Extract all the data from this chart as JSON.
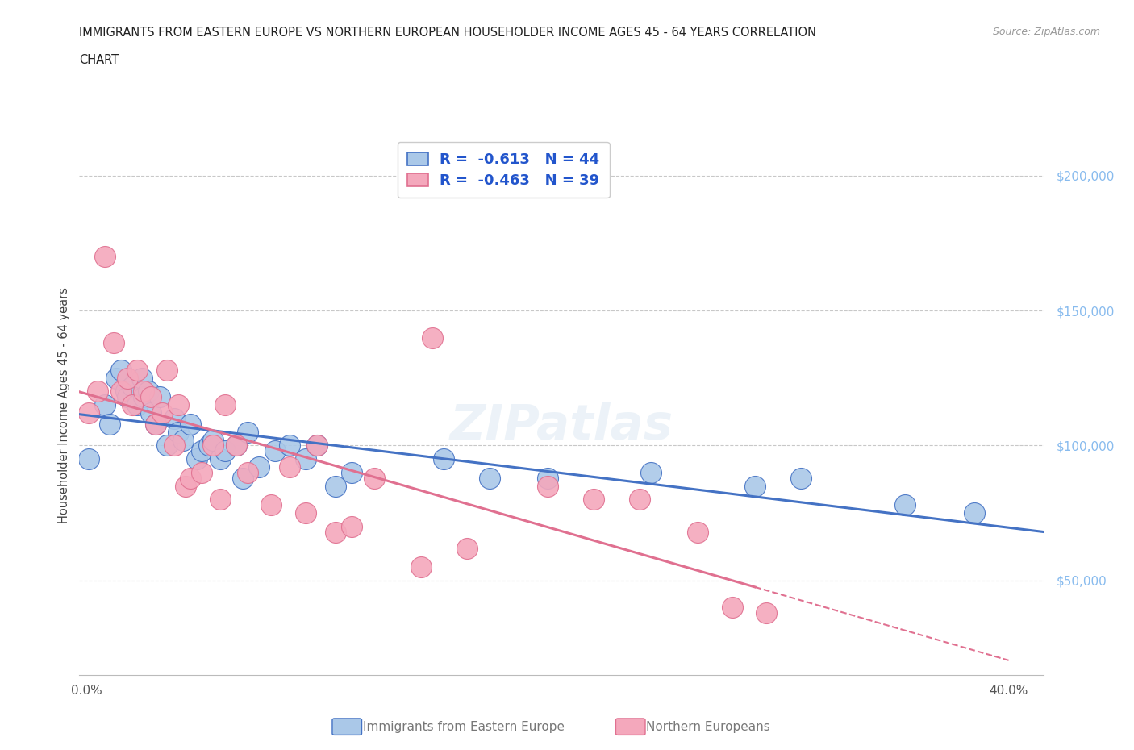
{
  "title_line1": "IMMIGRANTS FROM EASTERN EUROPE VS NORTHERN EUROPEAN HOUSEHOLDER INCOME AGES 45 - 64 YEARS CORRELATION",
  "title_line2": "CHART",
  "source": "Source: ZipAtlas.com",
  "ylabel": "Householder Income Ages 45 - 64 years",
  "r_eastern": -0.613,
  "n_eastern": 44,
  "r_northern": -0.463,
  "n_northern": 39,
  "xlim": [
    -0.003,
    0.415
  ],
  "ylim": [
    15000,
    215000
  ],
  "color_eastern": "#aac8e8",
  "color_northern": "#f4a8bc",
  "line_color_eastern": "#4472c4",
  "line_color_northern": "#e07090",
  "background_color": "#ffffff",
  "grid_color": "#c8c8c8",
  "ytick_color": "#88bbee",
  "legend_text_color": "#2255cc",
  "eastern_x": [
    0.001,
    0.008,
    0.01,
    0.013,
    0.015,
    0.017,
    0.018,
    0.02,
    0.022,
    0.024,
    0.025,
    0.027,
    0.028,
    0.03,
    0.032,
    0.035,
    0.038,
    0.04,
    0.042,
    0.045,
    0.048,
    0.05,
    0.053,
    0.055,
    0.058,
    0.06,
    0.065,
    0.068,
    0.07,
    0.075,
    0.082,
    0.088,
    0.095,
    0.1,
    0.108,
    0.115,
    0.155,
    0.175,
    0.2,
    0.245,
    0.29,
    0.31,
    0.355,
    0.385
  ],
  "eastern_y": [
    95000,
    115000,
    108000,
    125000,
    128000,
    120000,
    118000,
    122000,
    115000,
    125000,
    118000,
    120000,
    112000,
    108000,
    118000,
    100000,
    110000,
    105000,
    102000,
    108000,
    95000,
    98000,
    100000,
    102000,
    95000,
    98000,
    100000,
    88000,
    105000,
    92000,
    98000,
    100000,
    95000,
    100000,
    85000,
    90000,
    95000,
    88000,
    88000,
    90000,
    85000,
    88000,
    78000,
    75000
  ],
  "northern_x": [
    0.001,
    0.005,
    0.008,
    0.012,
    0.015,
    0.018,
    0.02,
    0.022,
    0.025,
    0.028,
    0.03,
    0.033,
    0.035,
    0.038,
    0.04,
    0.043,
    0.045,
    0.05,
    0.055,
    0.058,
    0.06,
    0.065,
    0.07,
    0.08,
    0.088,
    0.095,
    0.1,
    0.108,
    0.115,
    0.125,
    0.145,
    0.15,
    0.165,
    0.2,
    0.22,
    0.24,
    0.265,
    0.28,
    0.295
  ],
  "northern_y": [
    112000,
    120000,
    170000,
    138000,
    120000,
    125000,
    115000,
    128000,
    120000,
    118000,
    108000,
    112000,
    128000,
    100000,
    115000,
    85000,
    88000,
    90000,
    100000,
    80000,
    115000,
    100000,
    90000,
    78000,
    92000,
    75000,
    100000,
    68000,
    70000,
    88000,
    55000,
    140000,
    62000,
    85000,
    80000,
    80000,
    68000,
    40000,
    38000
  ]
}
